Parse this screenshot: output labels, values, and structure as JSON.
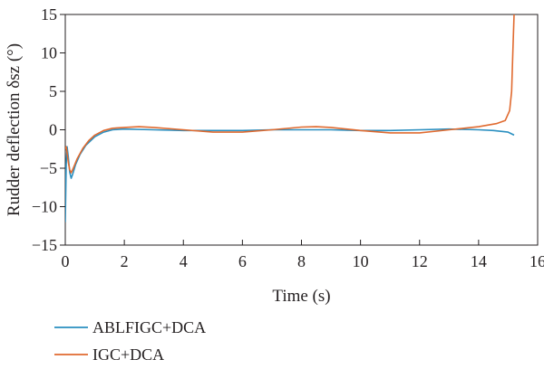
{
  "chart_data": {
    "type": "line",
    "title": "",
    "xlabel": "Time (s)",
    "ylabel": "Rudder deflection δsz (°)",
    "xlim": [
      0,
      16
    ],
    "ylim": [
      -15,
      15
    ],
    "x_ticks": [
      0,
      2,
      4,
      6,
      8,
      10,
      12,
      14,
      16
    ],
    "y_ticks": [
      -15,
      -10,
      -5,
      0,
      5,
      10,
      15
    ],
    "grid": false,
    "legend_position": "bottom-left",
    "series": [
      {
        "name": "ABLFIGC+DCA",
        "color": "#2a8fc0",
        "points": [
          [
            0.0,
            -12.0
          ],
          [
            0.03,
            -4.5
          ],
          [
            0.06,
            -2.2
          ],
          [
            0.1,
            -3.5
          ],
          [
            0.15,
            -5.5
          ],
          [
            0.2,
            -6.3
          ],
          [
            0.25,
            -5.8
          ],
          [
            0.35,
            -4.5
          ],
          [
            0.5,
            -3.2
          ],
          [
            0.7,
            -2.0
          ],
          [
            1.0,
            -0.9
          ],
          [
            1.3,
            -0.3
          ],
          [
            1.6,
            0.0
          ],
          [
            2.0,
            0.1
          ],
          [
            3.0,
            0.0
          ],
          [
            4.0,
            -0.1
          ],
          [
            5.0,
            -0.1
          ],
          [
            6.0,
            -0.1
          ],
          [
            7.0,
            0.0
          ],
          [
            8.0,
            0.0
          ],
          [
            9.0,
            0.0
          ],
          [
            10.0,
            -0.1
          ],
          [
            11.0,
            -0.1
          ],
          [
            12.0,
            0.0
          ],
          [
            13.0,
            0.1
          ],
          [
            14.0,
            0.0
          ],
          [
            14.5,
            -0.1
          ],
          [
            15.0,
            -0.3
          ],
          [
            15.2,
            -0.7
          ]
        ]
      },
      {
        "name": "IGC+DCA",
        "color": "#e06a2f",
        "points": [
          [
            0.0,
            -2.5
          ],
          [
            0.03,
            -2.2
          ],
          [
            0.06,
            -3.0
          ],
          [
            0.1,
            -4.2
          ],
          [
            0.15,
            -5.2
          ],
          [
            0.2,
            -5.6
          ],
          [
            0.27,
            -5.0
          ],
          [
            0.4,
            -3.8
          ],
          [
            0.6,
            -2.4
          ],
          [
            0.8,
            -1.4
          ],
          [
            1.0,
            -0.7
          ],
          [
            1.3,
            -0.1
          ],
          [
            1.6,
            0.2
          ],
          [
            2.0,
            0.3
          ],
          [
            2.5,
            0.4
          ],
          [
            3.0,
            0.3
          ],
          [
            4.0,
            0.0
          ],
          [
            5.0,
            -0.3
          ],
          [
            6.0,
            -0.3
          ],
          [
            7.0,
            0.0
          ],
          [
            8.0,
            0.35
          ],
          [
            8.5,
            0.4
          ],
          [
            9.0,
            0.3
          ],
          [
            10.0,
            -0.1
          ],
          [
            11.0,
            -0.4
          ],
          [
            12.0,
            -0.4
          ],
          [
            13.0,
            0.0
          ],
          [
            14.0,
            0.4
          ],
          [
            14.6,
            0.8
          ],
          [
            14.9,
            1.2
          ],
          [
            15.05,
            2.5
          ],
          [
            15.12,
            5.0
          ],
          [
            15.16,
            10.0
          ],
          [
            15.2,
            15.0
          ]
        ]
      }
    ]
  }
}
